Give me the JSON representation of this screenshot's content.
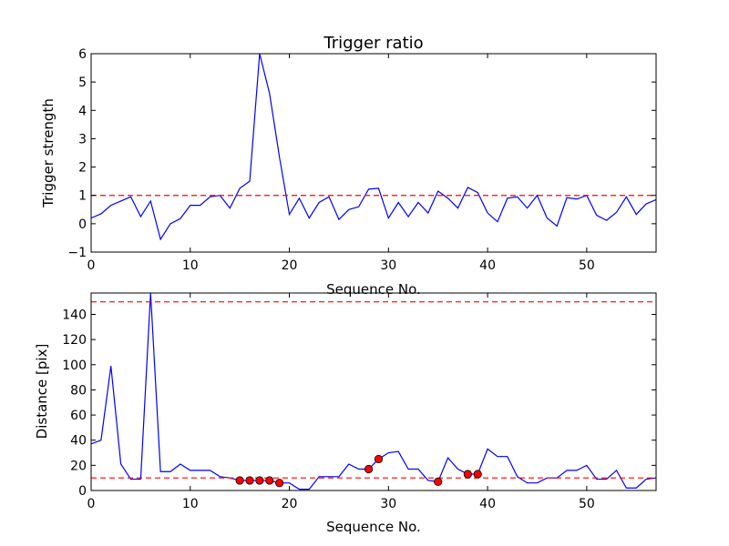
{
  "chart_data": [
    {
      "type": "line",
      "title": "Trigger ratio",
      "xlabel": "Sequence No.",
      "ylabel": "Trigger strength",
      "xlim": [
        0,
        57
      ],
      "ylim": [
        -1,
        6
      ],
      "xticks": [
        "0",
        "10",
        "20",
        "30",
        "40",
        "50"
      ],
      "yticks": [
        "−1",
        "0",
        "1",
        "2",
        "3",
        "4",
        "5",
        "6"
      ],
      "series": [
        {
          "color": "#0000ff",
          "x": [
            0,
            1,
            2,
            3,
            4,
            5,
            6,
            7,
            8,
            9,
            10,
            11,
            12,
            13,
            14,
            15,
            16,
            17,
            18,
            19,
            20,
            21,
            22,
            23,
            24,
            25,
            26,
            27,
            28,
            29,
            30,
            31,
            32,
            33,
            34,
            35,
            36,
            37,
            38,
            39,
            40,
            41,
            42,
            43,
            44,
            45,
            46,
            47,
            48,
            49,
            50,
            51,
            52,
            53,
            54,
            55,
            56,
            57
          ],
          "y": [
            0.2,
            0.35,
            0.65,
            0.8,
            0.95,
            0.25,
            0.8,
            -0.55,
            0.0,
            0.18,
            0.65,
            0.65,
            0.95,
            1.0,
            0.55,
            1.25,
            1.5,
            6.0,
            4.6,
            2.35,
            0.33,
            0.9,
            0.2,
            0.75,
            0.95,
            0.15,
            0.5,
            0.6,
            1.22,
            1.25,
            0.2,
            0.75,
            0.25,
            0.75,
            0.38,
            1.15,
            0.9,
            0.55,
            1.28,
            1.1,
            0.38,
            0.07,
            0.9,
            0.95,
            0.55,
            1.0,
            0.2,
            -0.08,
            0.92,
            0.87,
            1.0,
            0.3,
            0.12,
            0.4,
            0.95,
            0.33,
            0.7,
            0.85
          ]
        }
      ],
      "hlines": [
        {
          "y": 1,
          "color": "#ff0000",
          "style": "dashed"
        }
      ],
      "grid": false
    },
    {
      "type": "line",
      "xlabel": "Sequence No.",
      "ylabel": "Distance [pix]",
      "xlim": [
        0,
        57
      ],
      "ylim": [
        0,
        157
      ],
      "xticks": [
        "0",
        "10",
        "20",
        "30",
        "40",
        "50"
      ],
      "yticks": [
        "0",
        "20",
        "40",
        "60",
        "80",
        "100",
        "120",
        "140"
      ],
      "series": [
        {
          "color": "#0000ff",
          "x": [
            0,
            1,
            2,
            3,
            4,
            5,
            6,
            7,
            8,
            9,
            10,
            11,
            12,
            13,
            14,
            15,
            16,
            17,
            18,
            19,
            20,
            21,
            22,
            23,
            24,
            25,
            26,
            27,
            28,
            29,
            30,
            31,
            32,
            33,
            34,
            35,
            36,
            37,
            38,
            39,
            40,
            41,
            42,
            43,
            44,
            45,
            46,
            47,
            48,
            49,
            50,
            51,
            52,
            53,
            54,
            55,
            56,
            57
          ],
          "y": [
            37,
            40,
            99,
            21,
            9,
            9,
            157,
            15,
            15,
            21,
            16,
            16,
            16,
            11,
            10,
            8,
            8,
            8,
            8,
            6,
            6,
            1,
            1,
            11,
            11,
            11,
            21,
            17,
            17,
            25,
            30,
            31,
            17,
            17,
            8,
            7,
            26,
            17,
            13,
            13,
            33,
            27,
            27,
            11,
            6,
            6,
            10,
            10,
            16,
            16,
            20,
            9,
            9,
            16,
            2,
            2,
            9,
            10
          ]
        }
      ],
      "markers": {
        "color": "#ff0000",
        "x": [
          15,
          16,
          17,
          18,
          19,
          28,
          29,
          35,
          38,
          39
        ],
        "y": [
          8,
          8,
          8,
          8,
          6,
          17,
          25,
          7,
          13,
          13
        ]
      },
      "hlines": [
        {
          "y": 10,
          "color": "#ff0000",
          "style": "dashed"
        },
        {
          "y": 150,
          "color": "#ff0000",
          "style": "dashed"
        }
      ],
      "grid": false
    }
  ]
}
